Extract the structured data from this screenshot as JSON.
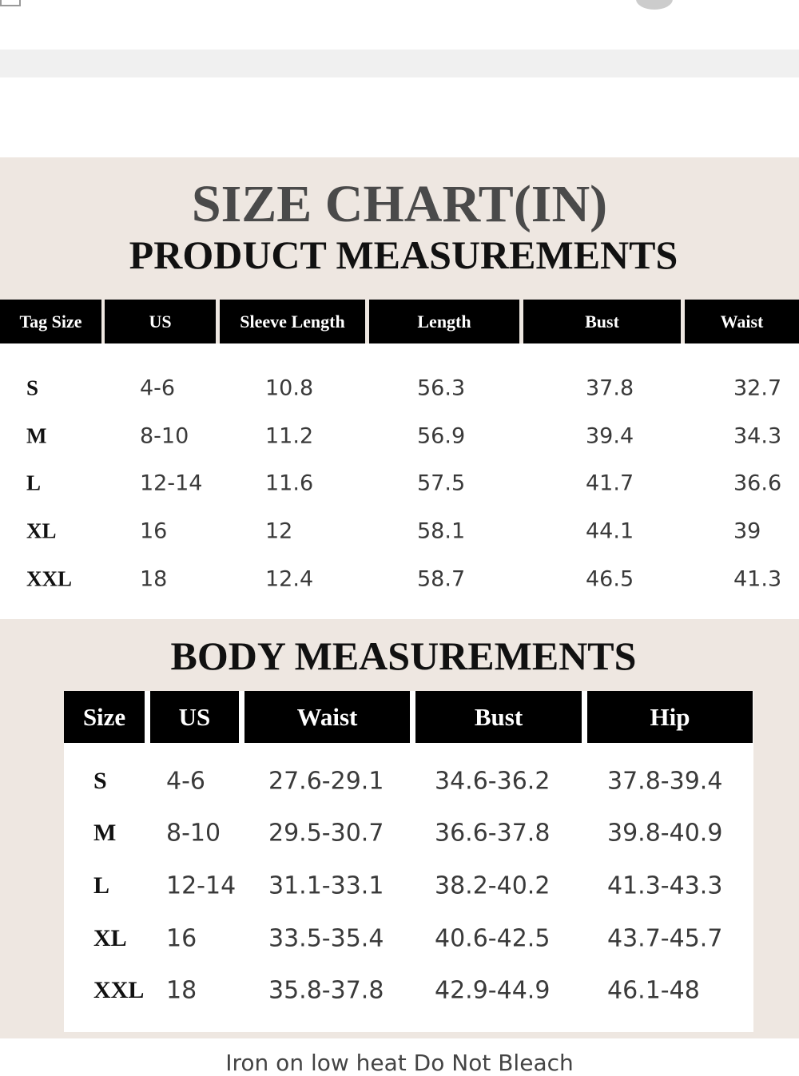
{
  "product": {
    "title": "SIZE CHART(IN)",
    "subtitle": "PRODUCT MEASUREMENTS",
    "columns": [
      "Tag Size",
      "US",
      "Sleeve Length",
      "Length",
      "Bust",
      "Waist"
    ],
    "rows": [
      [
        "S",
        "4-6",
        "10.8",
        "56.3",
        "37.8",
        "32.7"
      ],
      [
        "M",
        "8-10",
        "11.2",
        "56.9",
        "39.4",
        "34.3"
      ],
      [
        "L",
        "12-14",
        "11.6",
        "57.5",
        "41.7",
        "36.6"
      ],
      [
        "XL",
        "16",
        "12",
        "58.1",
        "44.1",
        "39"
      ],
      [
        "XXL",
        "18",
        "12.4",
        "58.7",
        "46.5",
        "41.3"
      ]
    ]
  },
  "body": {
    "title": "BODY MEASUREMENTS",
    "columns": [
      "Size",
      "US",
      "Waist",
      "Bust",
      "Hip"
    ],
    "rows": [
      [
        "S",
        "4-6",
        "27.6-29.1",
        "34.6-36.2",
        "37.8-39.4"
      ],
      [
        "M",
        "8-10",
        "29.5-30.7",
        "36.6-37.8",
        "39.8-40.9"
      ],
      [
        "L",
        "12-14",
        "31.1-33.1",
        "38.2-40.2",
        "41.3-43.3"
      ],
      [
        "XL",
        "16",
        "33.5-35.4",
        "40.6-42.5",
        "43.7-45.7"
      ],
      [
        "XXL",
        "18",
        "35.8-37.8",
        "42.9-44.9",
        "46.1-48"
      ]
    ]
  },
  "footer": {
    "care": "Iron on low heat Do Not Bleach"
  }
}
